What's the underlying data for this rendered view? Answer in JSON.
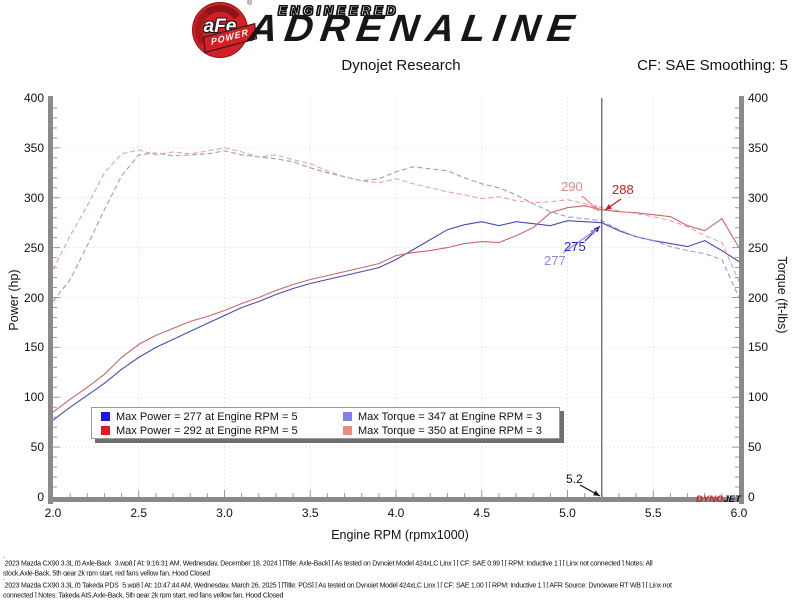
{
  "header": {
    "brand": {
      "circle_text": "aFe",
      "banner_text": "POWER",
      "reg": "®",
      "line1": "ENGINEERED",
      "line2": "ADRENALINE"
    },
    "title": "Dynojet Research",
    "smoothing": "CF: SAE Smoothing: 5"
  },
  "chart_data": {
    "type": "line",
    "title": "Dynojet Research",
    "xlabel": "Engine RPM (rpmx1000)",
    "ylabel_left": "Power (hp)",
    "ylabel_right": "Torque (ft-lbs)",
    "xlim": [
      2.0,
      6.0
    ],
    "ylim": [
      0,
      400
    ],
    "x_major_ticks": [
      2.0,
      2.5,
      3.0,
      3.5,
      4.0,
      4.5,
      5.0,
      5.5,
      6.0
    ],
    "y_major_ticks": [
      0,
      50,
      100,
      150,
      200,
      250,
      300,
      350,
      400
    ],
    "grid": true,
    "legend_position": "lower-left",
    "cursor_rpm": 5.2,
    "x": [
      2.0,
      2.1,
      2.2,
      2.3,
      2.4,
      2.5,
      2.6,
      2.7,
      2.8,
      2.9,
      3.0,
      3.1,
      3.2,
      3.3,
      3.4,
      3.5,
      3.6,
      3.7,
      3.8,
      3.9,
      4.0,
      4.1,
      4.2,
      4.3,
      4.4,
      4.5,
      4.6,
      4.7,
      4.8,
      4.9,
      5.0,
      5.1,
      5.2,
      5.3,
      5.4,
      5.5,
      5.6,
      5.7,
      5.8,
      5.9,
      6.0
    ],
    "series": [
      {
        "id": "power-baseline",
        "name": "Max Power = 277 at Engine RPM = 5",
        "color": "#4a4ab4",
        "style": "solid",
        "values": [
          77,
          90,
          102,
          114,
          128,
          140,
          150,
          158,
          166,
          174,
          182,
          190,
          196,
          203,
          209,
          214,
          218,
          222,
          226,
          230,
          238,
          248,
          258,
          268,
          273,
          276,
          272,
          276,
          274,
          272,
          277,
          276,
          275,
          267,
          261,
          257,
          254,
          251,
          257,
          247,
          236
        ]
      },
      {
        "id": "power-pds",
        "name": "Max Power = 292 at Engine RPM = 5",
        "color": "#c66",
        "style": "solid",
        "values": [
          85,
          98,
          110,
          123,
          140,
          153,
          162,
          169,
          176,
          181,
          187,
          194,
          200,
          207,
          213,
          218,
          222,
          226,
          230,
          234,
          242,
          245,
          247,
          250,
          254,
          256,
          255,
          262,
          270,
          285,
          290,
          292,
          288,
          286,
          285,
          283,
          281,
          272,
          267,
          279,
          250
        ]
      },
      {
        "id": "torque-baseline",
        "name": "Max Torque = 347 at Engine RPM = 3",
        "color": "#9a9ad2",
        "style": "dashed",
        "values": [
          196,
          218,
          252,
          288,
          322,
          343,
          345,
          342,
          343,
          344,
          347,
          343,
          341,
          339,
          336,
          330,
          325,
          321,
          317,
          319,
          326,
          331,
          329,
          327,
          320,
          314,
          310,
          303,
          294,
          286,
          281,
          279,
          277,
          268,
          261,
          257,
          251,
          247,
          244,
          238,
          200
        ]
      },
      {
        "id": "torque-pds",
        "name": "Max Torque = 350 at Engine RPM = 3",
        "color": "#e6a2a2",
        "style": "dashed",
        "values": [
          228,
          262,
          292,
          325,
          344,
          348,
          343,
          346,
          344,
          347,
          350,
          346,
          341,
          343,
          338,
          334,
          327,
          321,
          317,
          315,
          319,
          314,
          310,
          306,
          303,
          299,
          301,
          297,
          295,
          296,
          298,
          294,
          290,
          287,
          284,
          281,
          277,
          271,
          262,
          255,
          216
        ]
      }
    ],
    "annotations": [
      {
        "label": "290",
        "color": "#e88686",
        "refers_to": "torque-pds at 5.2"
      },
      {
        "label": "288",
        "color": "#cc1a1a",
        "refers_to": "power-pds at 5.2"
      },
      {
        "label": "275",
        "color": "#2424cc",
        "refers_to": "power-baseline at 5.2"
      },
      {
        "label": "277",
        "color": "#8a8ad8",
        "refers_to": "torque-baseline at 5.2"
      },
      {
        "label": "5.2",
        "color": "#111111",
        "refers_to": "cursor rpm"
      }
    ]
  },
  "legend": {
    "entries": [
      {
        "swatch": "#1a1ae0",
        "label": "Max Power = 277 at Engine RPM = 5"
      },
      {
        "swatch": "#e01a1a",
        "label": "Max Power = 292 at Engine RPM = 5"
      },
      {
        "swatch": "#8080e8",
        "label": "Max Torque = 347 at Engine RPM = 3"
      },
      {
        "swatch": "#f08888",
        "label": "Max Torque = 350 at Engine RPM = 3"
      }
    ]
  },
  "watermark": {
    "part1": "DYNO",
    "part1_color": "#cc2020",
    "part2": "JET",
    "part2_color": "#101010"
  },
  "footer": {
    "lines": [
      {
        "marker": "`",
        "text": "2023 Mazda CX90 3.3L (t) Axle-Back_3.wp8 [ At: 9:16:31 AM, Wednesday, December 18, 2024 ] [Title: Axle-Back]  [ As tested on Dynojet Model 424xLC Linx ] [ CF: SAE 0.99 ] [ RPM: Inductive 1 ] [ Linx not connected ] Notes: All"
      },
      {
        "marker": "",
        "text": "stock,Axle-Back, 5th gear 2k rpm start, red fans yellow fan, Hood Closed"
      },
      {
        "marker": "`",
        "text": "2023 Mazda CX90 3.3L (t)  Takeda PDS_5.wp8 [ At: 10:47:44 AM, Wednesday, March 26, 2025 ] [Title: PDS]  [ As tested on Dynojet Model 424xLC Linx ] [ CF: SAE 1.00 ] [ RPM: Inductive 1 ] [ AFR Source: Dynoware RT WB ] [ Linx not"
      },
      {
        "marker": "",
        "text": "connected ] Notes: Takeda AIS,Axle-Back, 5th gear 2k rpm start, red fans yellow fan, Hood Closed"
      }
    ]
  }
}
